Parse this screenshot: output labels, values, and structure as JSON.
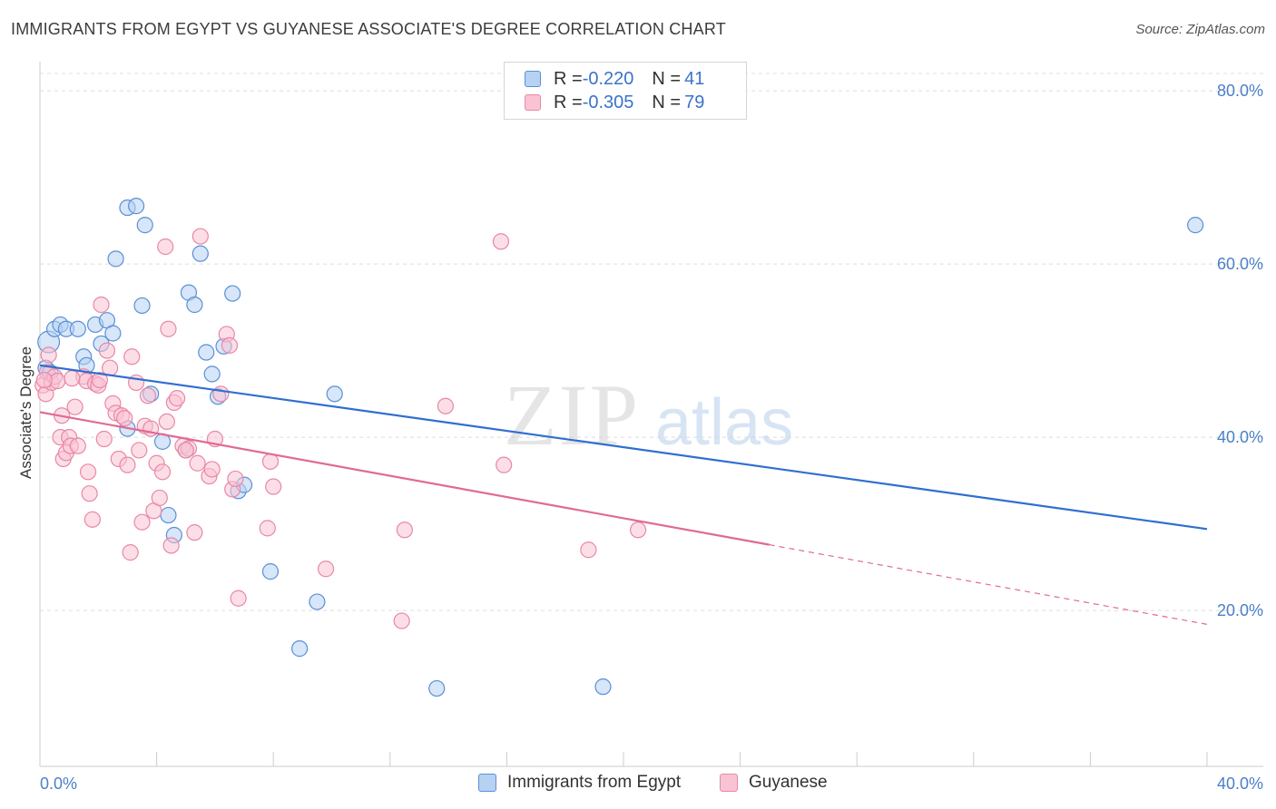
{
  "title": "IMMIGRANTS FROM EGYPT VS GUYANESE ASSOCIATE'S DEGREE CORRELATION CHART",
  "source": "Source: ZipAtlas.com",
  "watermark": {
    "zip": "ZIP",
    "atlas": "atlas"
  },
  "legend": {
    "rows": [
      {
        "r_label": "R = ",
        "r_value": "-0.220",
        "n_label": "N = ",
        "n_value": "41"
      },
      {
        "r_label": "R = ",
        "r_value": "-0.305",
        "n_label": "N = ",
        "n_value": "79"
      }
    ]
  },
  "colors": {
    "egypt_fill": "#b7d1f3",
    "egypt_stroke": "#5b8fd6",
    "egypt_line": "#2f6fcf",
    "guyanese_fill": "#f9c3d4",
    "guyanese_stroke": "#e888a6",
    "guyanese_line": "#e06a95",
    "axis_text": "#4a7fc8",
    "grid": "#dddddd"
  },
  "chart_data": {
    "type": "scatter",
    "title": "IMMIGRANTS FROM EGYPT VS GUYANESE ASSOCIATE'S DEGREE CORRELATION CHART",
    "xlabel": "",
    "ylabel": "Associate's Degree",
    "xlim": [
      0,
      40
    ],
    "ylim": [
      2,
      82
    ],
    "x_tick_labels": [
      "0.0%",
      "40.0%"
    ],
    "y_ticks": [
      20,
      40,
      60,
      80
    ],
    "y_tick_labels": [
      "20.0%",
      "40.0%",
      "60.0%",
      "80.0%"
    ],
    "grid": true,
    "legend_position": "top-center",
    "series": [
      {
        "name": "Immigrants from Egypt",
        "r": -0.22,
        "n": 41,
        "trend": {
          "x0": 0,
          "y0": 48.3,
          "x1": 40,
          "y1": 29.4,
          "solid_until": 40
        },
        "points": [
          [
            0.3,
            51,
            1.4
          ],
          [
            0.2,
            48,
            1.0
          ],
          [
            0.5,
            52.5,
            1.0
          ],
          [
            0.7,
            53,
            1.0
          ],
          [
            0.9,
            52.5,
            1.0
          ],
          [
            1.3,
            52.5,
            1.0
          ],
          [
            1.5,
            49.3,
            1.0
          ],
          [
            1.6,
            48.3,
            1.0
          ],
          [
            1.9,
            53,
            1.0
          ],
          [
            2.1,
            50.8,
            1.0
          ],
          [
            2.3,
            53.5,
            1.0
          ],
          [
            2.5,
            52,
            1.0
          ],
          [
            2.6,
            60.6,
            1.0
          ],
          [
            3.0,
            66.5,
            1.0
          ],
          [
            3.3,
            66.7,
            1.0
          ],
          [
            3.5,
            55.2,
            1.0
          ],
          [
            3.6,
            64.5,
            1.0
          ],
          [
            3.0,
            41,
            1.0
          ],
          [
            3.8,
            45,
            1.0
          ],
          [
            4.2,
            39.5,
            1.0
          ],
          [
            4.4,
            31,
            1.0
          ],
          [
            4.6,
            28.7,
            1.0
          ],
          [
            5.0,
            38.5,
            1.0
          ],
          [
            5.1,
            56.7,
            1.0
          ],
          [
            5.3,
            55.3,
            1.0
          ],
          [
            5.5,
            61.2,
            1.0
          ],
          [
            5.7,
            49.8,
            1.0
          ],
          [
            5.9,
            47.3,
            1.0
          ],
          [
            6.1,
            44.7,
            1.0
          ],
          [
            6.3,
            50.5,
            1.0
          ],
          [
            6.6,
            56.6,
            1.0
          ],
          [
            6.8,
            33.8,
            1.0
          ],
          [
            7.0,
            34.5,
            1.0
          ],
          [
            7.9,
            24.5,
            1.0
          ],
          [
            8.9,
            15.6,
            1.0
          ],
          [
            9.5,
            21,
            1.0
          ],
          [
            10.1,
            45,
            1.0
          ],
          [
            13.6,
            11,
            1.0
          ],
          [
            19.3,
            11.2,
            1.0
          ],
          [
            39.6,
            64.5,
            1.0
          ],
          [
            0.35,
            47.5,
            1.0
          ]
        ]
      },
      {
        "name": "Guyanese",
        "r": -0.305,
        "n": 79,
        "trend": {
          "x0": 0,
          "y0": 42.9,
          "x1": 40,
          "y1": 18.4,
          "solid_until": 25
        },
        "points": [
          [
            0.1,
            46,
            1.0
          ],
          [
            0.2,
            45,
            1.0
          ],
          [
            0.25,
            47.5,
            1.0
          ],
          [
            0.3,
            49.5,
            1.0
          ],
          [
            0.4,
            46.3,
            1.0
          ],
          [
            0.5,
            47,
            1.0
          ],
          [
            0.6,
            46.5,
            1.0
          ],
          [
            0.7,
            40,
            1.0
          ],
          [
            0.75,
            42.5,
            1.0
          ],
          [
            0.8,
            37.5,
            1.0
          ],
          [
            0.9,
            38.2,
            1.0
          ],
          [
            1.0,
            40,
            1.0
          ],
          [
            1.05,
            39,
            1.0
          ],
          [
            1.2,
            43.5,
            1.0
          ],
          [
            1.3,
            39,
            1.0
          ],
          [
            1.5,
            47,
            1.0
          ],
          [
            1.6,
            46.5,
            1.0
          ],
          [
            1.65,
            36,
            1.0
          ],
          [
            1.7,
            33.5,
            1.0
          ],
          [
            1.8,
            30.5,
            1.0
          ],
          [
            1.9,
            46.2,
            1.0
          ],
          [
            2.0,
            46,
            1.0
          ],
          [
            2.1,
            55.3,
            1.0
          ],
          [
            2.2,
            39.8,
            1.0
          ],
          [
            2.3,
            50,
            1.0
          ],
          [
            2.4,
            48,
            1.0
          ],
          [
            2.5,
            43.9,
            1.0
          ],
          [
            2.6,
            42.8,
            1.0
          ],
          [
            2.7,
            37.5,
            1.0
          ],
          [
            2.8,
            42.5,
            1.0
          ],
          [
            2.9,
            42.2,
            1.0
          ],
          [
            3.0,
            36.8,
            1.0
          ],
          [
            3.1,
            26.7,
            1.0
          ],
          [
            3.15,
            49.3,
            1.0
          ],
          [
            3.3,
            46.3,
            1.0
          ],
          [
            3.4,
            38.5,
            1.0
          ],
          [
            3.5,
            30.2,
            1.0
          ],
          [
            3.6,
            41.3,
            1.0
          ],
          [
            3.7,
            44.8,
            1.0
          ],
          [
            3.8,
            41,
            1.0
          ],
          [
            3.9,
            31.5,
            1.0
          ],
          [
            4.0,
            37,
            1.0
          ],
          [
            4.1,
            33,
            1.0
          ],
          [
            4.2,
            36,
            1.0
          ],
          [
            4.3,
            62,
            1.0
          ],
          [
            4.35,
            41.8,
            1.0
          ],
          [
            4.4,
            52.5,
            1.0
          ],
          [
            4.5,
            27.5,
            1.0
          ],
          [
            4.6,
            44,
            1.0
          ],
          [
            4.7,
            44.5,
            1.0
          ],
          [
            4.9,
            39,
            1.0
          ],
          [
            5.1,
            38.7,
            1.0
          ],
          [
            5.3,
            29,
            1.0
          ],
          [
            5.4,
            37,
            1.0
          ],
          [
            5.5,
            63.2,
            1.0
          ],
          [
            5.8,
            35.5,
            1.0
          ],
          [
            5.9,
            36.3,
            1.0
          ],
          [
            6.0,
            39.8,
            1.0
          ],
          [
            6.2,
            45,
            1.0
          ],
          [
            6.4,
            51.9,
            1.0
          ],
          [
            6.5,
            50.6,
            1.0
          ],
          [
            6.6,
            34,
            1.0
          ],
          [
            6.7,
            35.2,
            1.0
          ],
          [
            6.8,
            21.4,
            1.0
          ],
          [
            7.8,
            29.5,
            1.0
          ],
          [
            7.9,
            37.2,
            1.0
          ],
          [
            8.0,
            34.3,
            1.0
          ],
          [
            9.8,
            24.8,
            1.0
          ],
          [
            12.4,
            18.8,
            1.0
          ],
          [
            12.5,
            29.3,
            1.0
          ],
          [
            13.9,
            43.6,
            1.0
          ],
          [
            15.8,
            62.6,
            1.0
          ],
          [
            15.9,
            36.8,
            1.0
          ],
          [
            18.8,
            27,
            1.0
          ],
          [
            20.5,
            29.3,
            1.0
          ],
          [
            2.05,
            46.6,
            1.0
          ],
          [
            1.1,
            46.8,
            1.0
          ],
          [
            0.15,
            46.6,
            1.0
          ],
          [
            5.0,
            38.5,
            1.0
          ]
        ]
      }
    ]
  }
}
